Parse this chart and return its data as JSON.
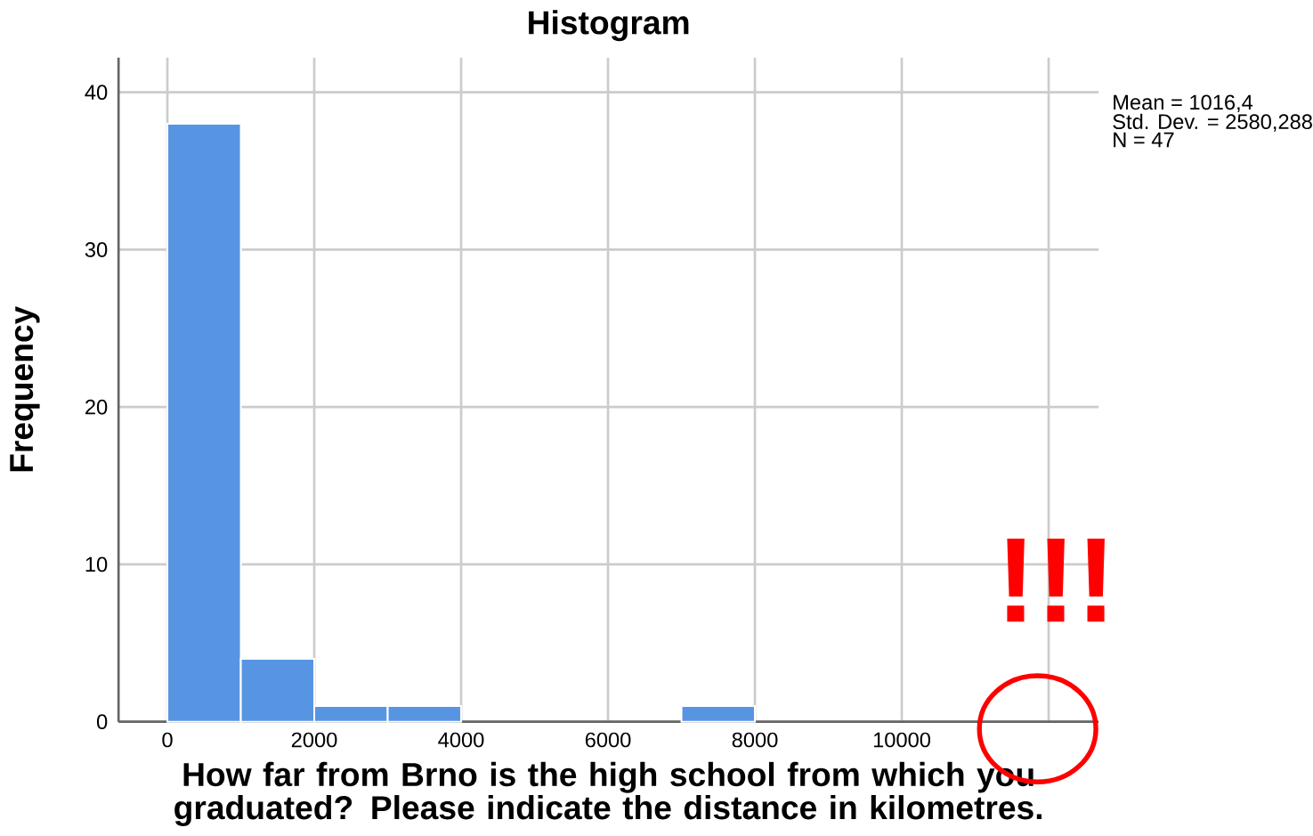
{
  "chart_data": {
    "type": "histogram",
    "title": "Histogram",
    "xlabel": "How far from Brno is the high school from which you graduated? Please indicate the distance in kilometres.",
    "ylabel": "Frequency",
    "bins": [
      0,
      1000,
      2000,
      3000,
      4000,
      5000,
      6000,
      7000,
      8000
    ],
    "values": [
      38,
      4,
      1,
      1,
      0,
      0,
      0,
      1
    ],
    "color": "#5795e3",
    "xlim": [
      -665,
      12680
    ],
    "ylim": [
      0,
      42.2
    ],
    "xticks": [
      0,
      2000,
      4000,
      6000,
      8000,
      10000,
      {
        "value": 12000,
        "label": null
      }
    ],
    "yticks": [
      0,
      10,
      20,
      30,
      40
    ],
    "grid": true,
    "annotations": [
      "Mean = 1016,4",
      "Std. Dev. = 2580,288",
      "N = 47",
      "!!!"
    ]
  }
}
